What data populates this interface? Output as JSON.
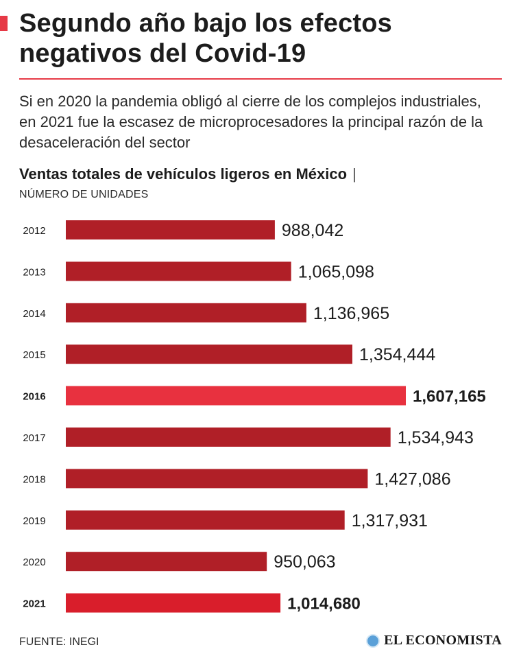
{
  "header": {
    "title": "Segundo año bajo los efectos negativos del Covid-19",
    "subtitle": "Si en 2020 la pandemia obligó al cierre de los complejos industriales, en 2021 fue la escasez de microprocesadores la principal razón de la desaceleración del sector"
  },
  "colors": {
    "accent": "#e63946",
    "bar_default": "#b01f27",
    "bar_2016": "#e8313f",
    "bar_2021": "#d91e2b"
  },
  "chart_data": {
    "type": "bar",
    "orientation": "horizontal",
    "title": "Ventas totales de vehículos ligeros en México",
    "title_separator": "|",
    "unit": "NÚMERO DE UNIDADES",
    "categories": [
      "2012",
      "2013",
      "2014",
      "2015",
      "2016",
      "2017",
      "2018",
      "2019",
      "2020",
      "2021"
    ],
    "values": [
      988042,
      1065098,
      1136965,
      1354444,
      1607165,
      1534943,
      1427086,
      1317931,
      950063,
      1014680
    ],
    "value_labels": [
      "988,042",
      "1,065,098",
      "1,136,965",
      "1,354,444",
      "1,607,165",
      "1,534,943",
      "1,427,086",
      "1,317,931",
      "950,063",
      "1,014,680"
    ],
    "highlighted": [
      "2016",
      "2021"
    ],
    "xlim": [
      0,
      1607165
    ],
    "xlabel": "",
    "ylabel": ""
  },
  "footer": {
    "source": "FUENTE: INEGI",
    "brand": "EL ECONOMISTA",
    "brand_icon": "globe-logo-icon"
  }
}
